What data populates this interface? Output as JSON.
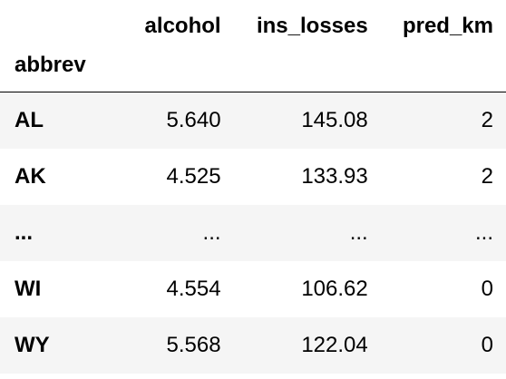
{
  "table": {
    "columns": [
      "alcohol",
      "ins_losses",
      "pred_km"
    ],
    "index_name": "abbrev",
    "rows": [
      {
        "label": "AL",
        "values": [
          "5.640",
          "145.08",
          "2"
        ]
      },
      {
        "label": "AK",
        "values": [
          "4.525",
          "133.93",
          "2"
        ]
      },
      {
        "label": "...",
        "values": [
          "...",
          "...",
          "..."
        ]
      },
      {
        "label": "WI",
        "values": [
          "4.554",
          "106.62",
          "0"
        ]
      },
      {
        "label": "WY",
        "values": [
          "5.568",
          "122.04",
          "0"
        ]
      }
    ]
  },
  "colors": {
    "stripe": "#f5f5f5",
    "text": "#000000",
    "border": "#000000"
  }
}
